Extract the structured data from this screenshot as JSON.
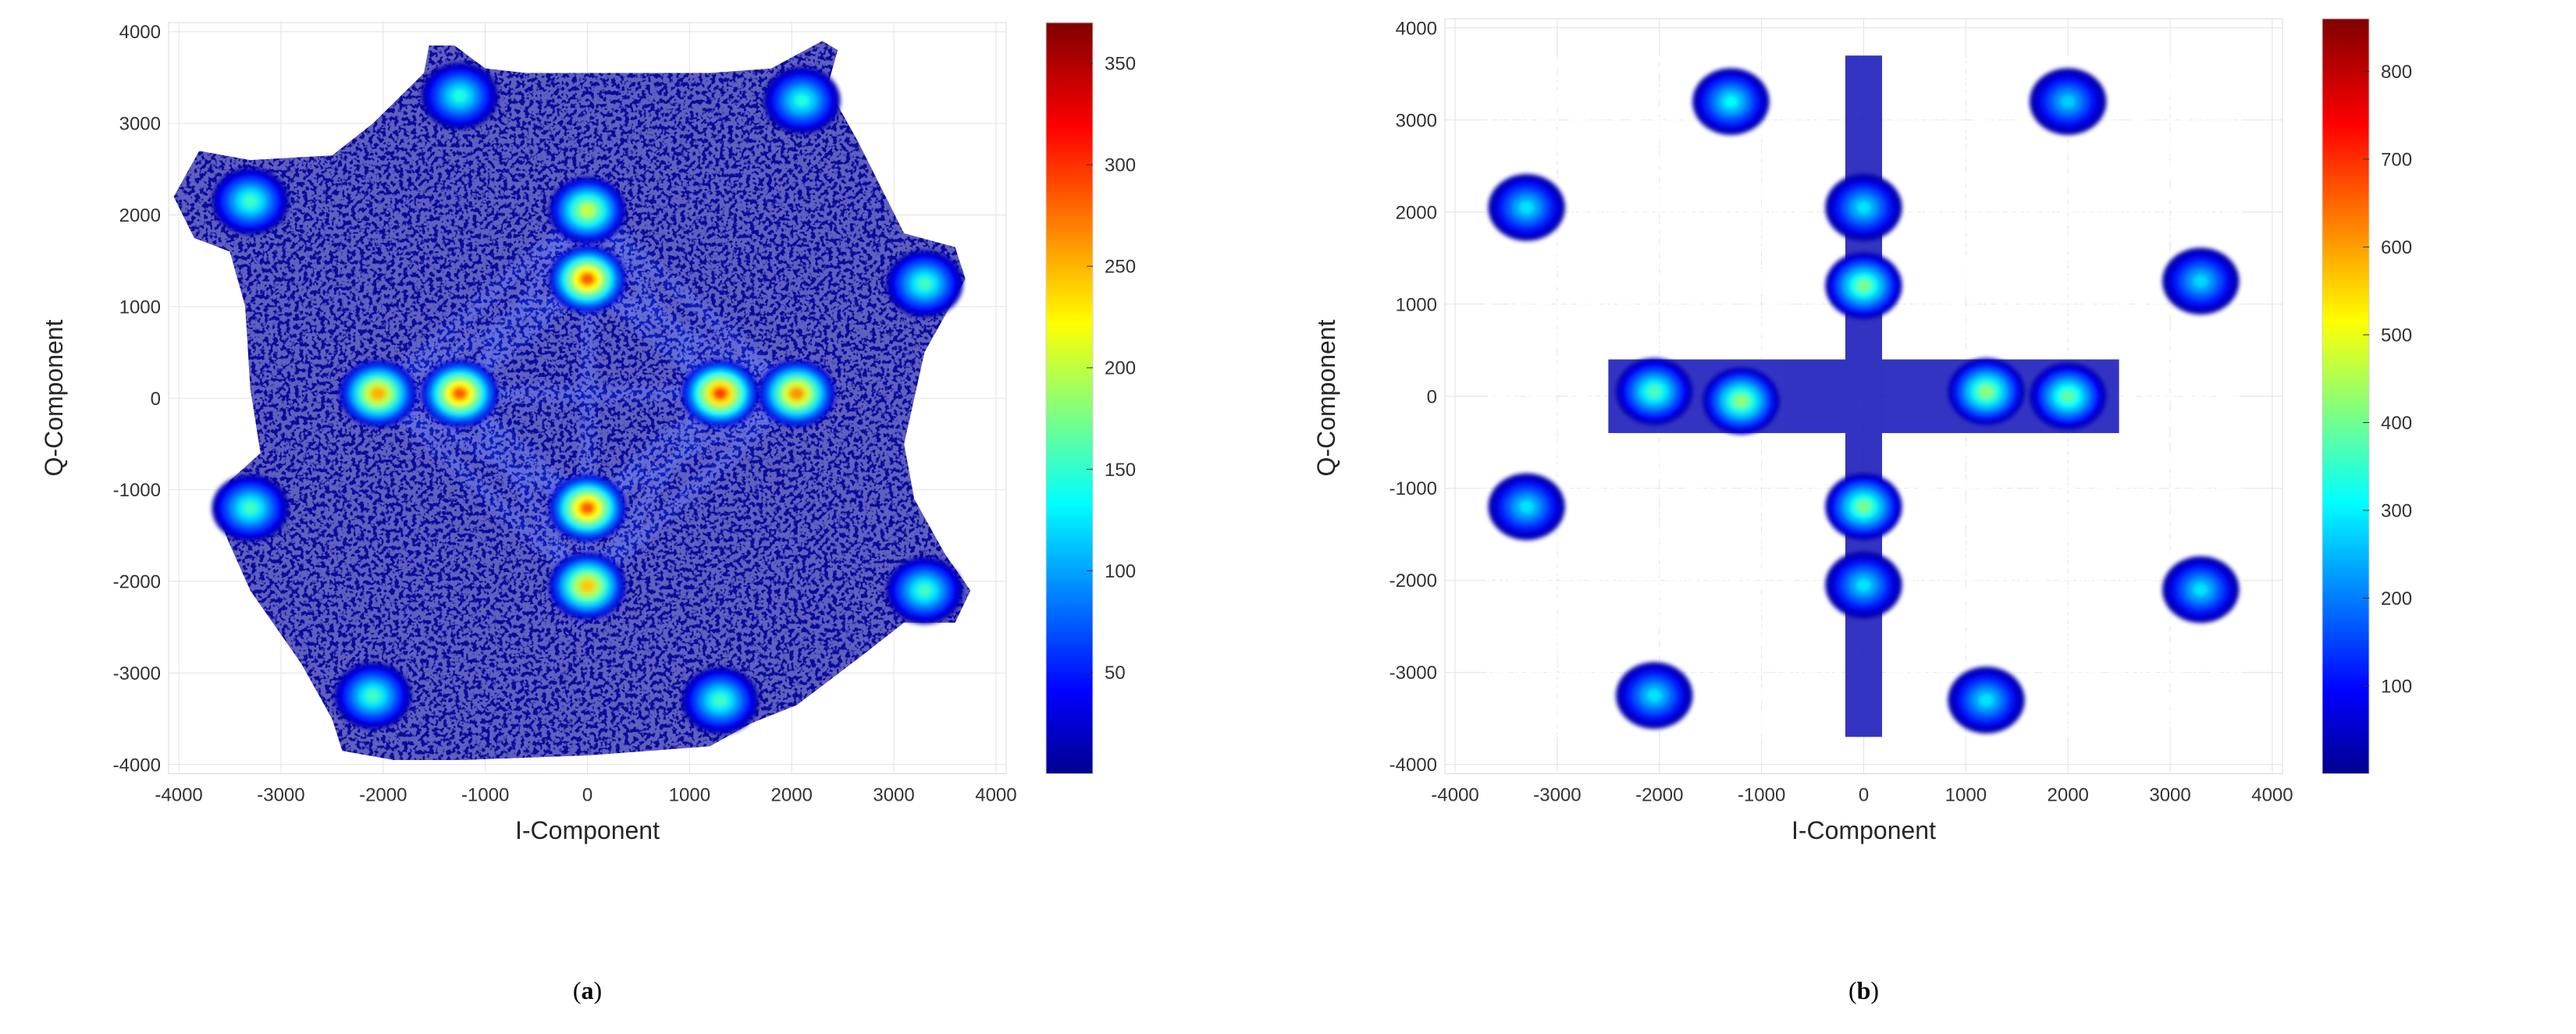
{
  "figure": {
    "panels": [
      {
        "panel_label": "a"
      },
      {
        "panel_label": "b"
      }
    ]
  },
  "chart_data": [
    {
      "type": "heatmap",
      "xlabel": "I-Component",
      "ylabel": "Q-Component",
      "xlim": [
        -4100,
        4100
      ],
      "ylim": [
        -4100,
        4100
      ],
      "xticks": [
        -4000,
        -3000,
        -2000,
        -1000,
        0,
        1000,
        2000,
        3000,
        4000
      ],
      "yticks": [
        -4000,
        -3000,
        -2000,
        -1000,
        0,
        1000,
        2000,
        3000,
        4000
      ],
      "grid": true,
      "colormap": "jet",
      "colorbar": {
        "min": 0,
        "max": 370,
        "ticks": [
          50,
          100,
          150,
          200,
          250,
          300,
          350
        ]
      },
      "background_density_color": "#0a0a9c",
      "cloud_outline": [
        [
          -1300,
          3850
        ],
        [
          -1000,
          3600
        ],
        [
          -600,
          3550
        ],
        [
          1200,
          3550
        ],
        [
          1800,
          3600
        ],
        [
          2300,
          3900
        ],
        [
          2450,
          3800
        ],
        [
          2350,
          3400
        ],
        [
          2650,
          2800
        ],
        [
          3100,
          1800
        ],
        [
          3600,
          1650
        ],
        [
          3700,
          1300
        ],
        [
          3500,
          900
        ],
        [
          3300,
          500
        ],
        [
          3100,
          -500
        ],
        [
          3200,
          -1100
        ],
        [
          3500,
          -1700
        ],
        [
          3750,
          -2100
        ],
        [
          3600,
          -2450
        ],
        [
          3100,
          -2450
        ],
        [
          2700,
          -2800
        ],
        [
          2050,
          -3350
        ],
        [
          1600,
          -3550
        ],
        [
          1200,
          -3800
        ],
        [
          0,
          -3900
        ],
        [
          -1200,
          -3950
        ],
        [
          -1900,
          -3950
        ],
        [
          -2400,
          -3850
        ],
        [
          -2500,
          -3500
        ],
        [
          -2800,
          -2900
        ],
        [
          -3300,
          -2100
        ],
        [
          -3500,
          -1600
        ],
        [
          -3650,
          -1200
        ],
        [
          -3500,
          -900
        ],
        [
          -3200,
          -600
        ],
        [
          -3300,
          100
        ],
        [
          -3350,
          1000
        ],
        [
          -3500,
          1600
        ],
        [
          -3850,
          1750
        ],
        [
          -4050,
          2200
        ],
        [
          -3800,
          2700
        ],
        [
          -3300,
          2600
        ],
        [
          -2500,
          2650
        ],
        [
          -2100,
          3000
        ],
        [
          -1600,
          3550
        ],
        [
          -1550,
          3850
        ]
      ],
      "clusters": [
        {
          "x": -1250,
          "y": 3300,
          "peak": 150
        },
        {
          "x": 2100,
          "y": 3250,
          "peak": 150
        },
        {
          "x": -3300,
          "y": 2150,
          "peak": 160
        },
        {
          "x": 3300,
          "y": 1250,
          "peak": 160
        },
        {
          "x": -3300,
          "y": -1200,
          "peak": 160
        },
        {
          "x": 3300,
          "y": -2100,
          "peak": 160
        },
        {
          "x": -2100,
          "y": -3250,
          "peak": 160
        },
        {
          "x": 1300,
          "y": -3300,
          "peak": 160
        },
        {
          "x": 0,
          "y": 2050,
          "peak": 210
        },
        {
          "x": 0,
          "y": 1300,
          "peak": 290
        },
        {
          "x": -2050,
          "y": 50,
          "peak": 260
        },
        {
          "x": -1250,
          "y": 50,
          "peak": 290
        },
        {
          "x": 1300,
          "y": 50,
          "peak": 300
        },
        {
          "x": 2050,
          "y": 50,
          "peak": 270
        },
        {
          "x": 0,
          "y": -1200,
          "peak": 290
        },
        {
          "x": 0,
          "y": -2050,
          "peak": 250
        }
      ]
    },
    {
      "type": "heatmap",
      "xlabel": "I-Component",
      "ylabel": "Q-Component",
      "xlim": [
        -4100,
        4100
      ],
      "ylim": [
        -4100,
        4100
      ],
      "xticks": [
        -4000,
        -3000,
        -2000,
        -1000,
        0,
        1000,
        2000,
        3000,
        4000
      ],
      "yticks": [
        -4000,
        -3000,
        -2000,
        -1000,
        0,
        1000,
        2000,
        3000,
        4000
      ],
      "grid": true,
      "colormap": "jet",
      "colorbar": {
        "min": 0,
        "max": 860,
        "ticks": [
          100,
          200,
          300,
          400,
          500,
          600,
          700,
          800
        ]
      },
      "background_density_color": "#1010b8",
      "clusters": [
        {
          "x": -1300,
          "y": 3200,
          "peak": 320
        },
        {
          "x": 2000,
          "y": 3200,
          "peak": 280
        },
        {
          "x": -3300,
          "y": 2050,
          "peak": 300
        },
        {
          "x": 3300,
          "y": 1250,
          "peak": 290
        },
        {
          "x": -3300,
          "y": -1200,
          "peak": 300
        },
        {
          "x": 3300,
          "y": -2100,
          "peak": 300
        },
        {
          "x": -2050,
          "y": -3250,
          "peak": 300
        },
        {
          "x": 1200,
          "y": -3300,
          "peak": 300
        },
        {
          "x": 0,
          "y": 2050,
          "peak": 300
        },
        {
          "x": 0,
          "y": 1200,
          "peak": 420
        },
        {
          "x": -2050,
          "y": 50,
          "peak": 380
        },
        {
          "x": -1200,
          "y": -50,
          "peak": 440
        },
        {
          "x": 1200,
          "y": 50,
          "peak": 440
        },
        {
          "x": 2000,
          "y": 0,
          "peak": 400
        },
        {
          "x": 0,
          "y": -1200,
          "peak": 420
        },
        {
          "x": 0,
          "y": -2050,
          "peak": 300
        }
      ]
    }
  ]
}
